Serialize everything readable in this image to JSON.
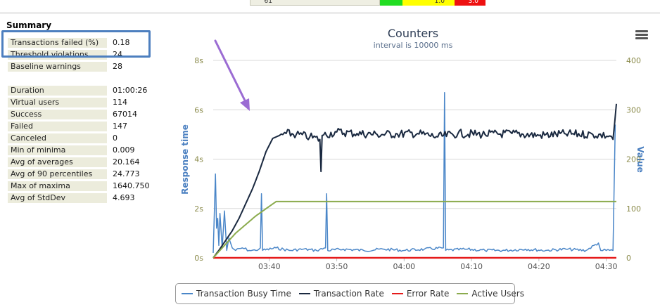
{
  "top_table": {
    "row_id": "^61",
    "yellow_value": "1.0",
    "red_value": "3.0"
  },
  "summary": {
    "title": "Summary",
    "group1": [
      {
        "label": "Transactions failed (%)",
        "value": "0.18"
      },
      {
        "label": "Threshold violations",
        "value": "24"
      },
      {
        "label": "Baseline warnings",
        "value": "28"
      }
    ],
    "group2": [
      {
        "label": "Duration",
        "value": "01:00:26"
      },
      {
        "label": "Virtual users",
        "value": "114"
      },
      {
        "label": "Success",
        "value": "67014"
      },
      {
        "label": "Failed",
        "value": "147"
      },
      {
        "label": "Canceled",
        "value": "0"
      },
      {
        "label": "Min of minima",
        "value": "0.009"
      },
      {
        "label": "Avg of averages",
        "value": "20.164"
      },
      {
        "label": "Avg of 90 percentiles",
        "value": "24.773"
      },
      {
        "label": "Max of maxima",
        "value": "1640.750"
      },
      {
        "label": "Avg of StdDev",
        "value": "4.693"
      }
    ]
  },
  "chart_data": {
    "type": "line",
    "title": "Counters",
    "subtitle": "interval is 10000 ms",
    "ylabel_left": "Response time",
    "ylabel_right": "Value",
    "x_ticks": [
      "03:40",
      "03:50",
      "04:00",
      "04:10",
      "04:20",
      "04:30"
    ],
    "x_range": [
      "03:31:40",
      "04:31:30"
    ],
    "y_left_ticks": [
      "0s",
      "2s",
      "4s",
      "6s",
      "8s"
    ],
    "y_left_range": [
      0,
      8
    ],
    "y_right_ticks": [
      "0",
      "100",
      "200",
      "300",
      "400"
    ],
    "y_right_range": [
      0,
      400
    ],
    "grid": true,
    "legend_position": "bottom",
    "series": [
      {
        "name": "Transaction Busy Time",
        "axis": "left",
        "color": "#4a86c8",
        "points": [
          [
            "03:31:40",
            0.2
          ],
          [
            "03:32:00",
            3.4
          ],
          [
            "03:32:10",
            1.2
          ],
          [
            "03:32:20",
            1.6
          ],
          [
            "03:32:30",
            0.5
          ],
          [
            "03:32:40",
            1.8
          ],
          [
            "03:33:00",
            0.4
          ],
          [
            "03:33:20",
            1.9
          ],
          [
            "03:33:40",
            0.3
          ],
          [
            "03:34:00",
            0.8
          ],
          [
            "03:34:30",
            0.4
          ],
          [
            "03:35:00",
            0.3
          ],
          [
            "03:36:00",
            0.4
          ],
          [
            "03:37:00",
            0.3
          ],
          [
            "03:38:00",
            0.3
          ],
          [
            "03:38:40",
            0.4
          ],
          [
            "03:38:50",
            2.6
          ],
          [
            "03:39:00",
            0.3
          ],
          [
            "03:41:00",
            0.4
          ],
          [
            "03:43:00",
            0.3
          ],
          [
            "03:45:00",
            0.35
          ],
          [
            "03:47:00",
            0.3
          ],
          [
            "03:48:20",
            0.4
          ],
          [
            "03:48:30",
            2.6
          ],
          [
            "03:48:40",
            0.3
          ],
          [
            "03:51:00",
            0.35
          ],
          [
            "03:54:00",
            0.3
          ],
          [
            "03:57:00",
            0.35
          ],
          [
            "04:00:00",
            0.3
          ],
          [
            "04:03:00",
            0.35
          ],
          [
            "04:05:50",
            0.4
          ],
          [
            "04:06:00",
            6.7
          ],
          [
            "04:06:10",
            0.3
          ],
          [
            "04:09:00",
            0.35
          ],
          [
            "04:12:00",
            0.3
          ],
          [
            "04:15:00",
            0.3
          ],
          [
            "04:18:00",
            0.35
          ],
          [
            "04:21:00",
            0.3
          ],
          [
            "04:24:00",
            0.35
          ],
          [
            "04:27:00",
            0.3
          ],
          [
            "04:28:50",
            0.6
          ],
          [
            "04:29:10",
            0.3
          ],
          [
            "04:30:00",
            0.3
          ],
          [
            "04:31:00",
            0.3
          ],
          [
            "04:31:20",
            5.4
          ]
        ]
      },
      {
        "name": "Transaction Rate",
        "axis": "right",
        "color": "#1a2940",
        "points": [
          [
            "03:31:40",
            0
          ],
          [
            "03:32:30",
            15
          ],
          [
            "03:33:30",
            35
          ],
          [
            "03:34:30",
            55
          ],
          [
            "03:35:30",
            80
          ],
          [
            "03:36:30",
            110
          ],
          [
            "03:37:30",
            140
          ],
          [
            "03:38:30",
            175
          ],
          [
            "03:39:30",
            215
          ],
          [
            "03:40:30",
            242
          ],
          [
            "03:41:30",
            248
          ],
          [
            "03:42:30",
            252
          ],
          [
            "03:44:00",
            250
          ],
          [
            "03:46:00",
            245
          ],
          [
            "03:47:30",
            240
          ],
          [
            "03:47:40",
            175
          ],
          [
            "03:47:50",
            248
          ],
          [
            "03:50:00",
            255
          ],
          [
            "03:53:00",
            252
          ],
          [
            "03:56:00",
            250
          ],
          [
            "03:59:00",
            251
          ],
          [
            "04:02:00",
            252
          ],
          [
            "04:05:00",
            245
          ],
          [
            "04:08:00",
            252
          ],
          [
            "04:12:00",
            250
          ],
          [
            "04:16:00",
            252
          ],
          [
            "04:20:00",
            248
          ],
          [
            "04:24:00",
            251
          ],
          [
            "04:28:00",
            250
          ],
          [
            "04:30:30",
            247
          ],
          [
            "04:31:00",
            240
          ],
          [
            "04:31:30",
            312
          ]
        ]
      },
      {
        "name": "Error Rate",
        "axis": "right",
        "color": "#e51b1b",
        "points": [
          [
            "03:31:40",
            0
          ],
          [
            "03:35:00",
            0
          ],
          [
            "03:45:00",
            0
          ],
          [
            "03:55:00",
            0
          ],
          [
            "04:05:00",
            0
          ],
          [
            "04:15:00",
            0
          ],
          [
            "04:25:00",
            0
          ],
          [
            "04:31:30",
            0
          ]
        ]
      },
      {
        "name": "Active Users",
        "axis": "right",
        "color": "#8bab4d",
        "points": [
          [
            "03:31:40",
            0
          ],
          [
            "03:35:00",
            50
          ],
          [
            "03:38:00",
            85
          ],
          [
            "03:41:00",
            114
          ],
          [
            "04:31:30",
            114
          ]
        ]
      }
    ]
  },
  "legend": [
    {
      "name": "Transaction Busy Time",
      "color": "#4a86c8"
    },
    {
      "name": "Transaction Rate",
      "color": "#1a2940"
    },
    {
      "name": "Error Rate",
      "color": "#e51b1b"
    },
    {
      "name": "Active Users",
      "color": "#8bab4d"
    }
  ],
  "annotations": {
    "arrow_color": "#9b6cd3",
    "highlight_color": "#4d7fbf",
    "menu_icon": "hamburger-menu-icon"
  }
}
